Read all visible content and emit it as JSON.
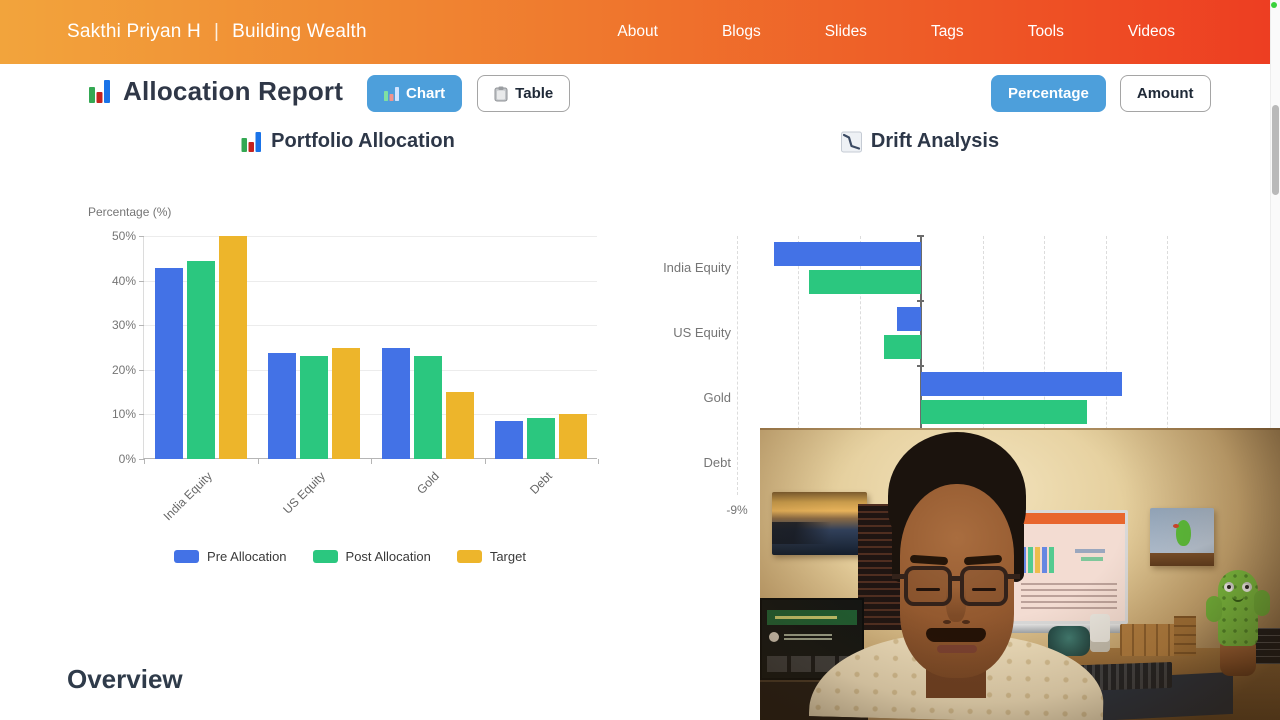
{
  "header": {
    "brand": "Sakthi Priyan H",
    "separator": "|",
    "tagline": "Building Wealth",
    "nav": [
      "About",
      "Blogs",
      "Slides",
      "Tags",
      "Tools",
      "Videos"
    ],
    "gradient": [
      "#F2A43C",
      "#EE4E24"
    ]
  },
  "toolbar": {
    "title": "Allocation Report",
    "view_toggle": [
      {
        "label": "Chart",
        "active": true
      },
      {
        "label": "Table",
        "active": false
      }
    ],
    "unit_toggle": [
      {
        "label": "Percentage",
        "active": true
      },
      {
        "label": "Amount",
        "active": false
      }
    ],
    "active_button_color": "#4D9FDB"
  },
  "chart_data": [
    {
      "type": "bar",
      "title": "Portfolio Allocation",
      "categories": [
        "India Equity",
        "US Equity",
        "Gold",
        "Debt"
      ],
      "series": [
        {
          "name": "Pre Allocation",
          "color": "#4372E6",
          "values": [
            42.8,
            23.8,
            24.8,
            8.6
          ]
        },
        {
          "name": "Post Allocation",
          "color": "#2BC77F",
          "values": [
            44.5,
            23.2,
            23.1,
            9.2
          ]
        },
        {
          "name": "Target",
          "color": "#EDB52B",
          "values": [
            50,
            25,
            15,
            10
          ]
        }
      ],
      "ylabel": "Percentage (%)",
      "ylim": [
        0,
        50
      ],
      "ytick_step": 10,
      "tick_suffix": "%",
      "grid": true,
      "legend_position": "bottom"
    },
    {
      "type": "bar-horizontal",
      "title": "Drift Analysis",
      "categories": [
        "India Equity",
        "US Equity",
        "Gold",
        "Debt"
      ],
      "series": [
        {
          "name": "Pre Allocation",
          "color": "#4372E6",
          "values": [
            -7.2,
            -1.2,
            9.8,
            -1.4
          ]
        },
        {
          "name": "Post Allocation",
          "color": "#2BC77F",
          "values": [
            -5.5,
            -1.8,
            8.1,
            -0.8
          ]
        }
      ],
      "xlim": [
        -9,
        12
      ],
      "xtick_step": 3,
      "tick_suffix": "%",
      "visible_xtick_label": "-9%",
      "grid": "dashed-vertical"
    }
  ],
  "overview": {
    "heading": "Overview"
  },
  "scrollbar": {
    "thumb_color": "#b9b9b9"
  },
  "recording_dot_color": "#39d23c"
}
